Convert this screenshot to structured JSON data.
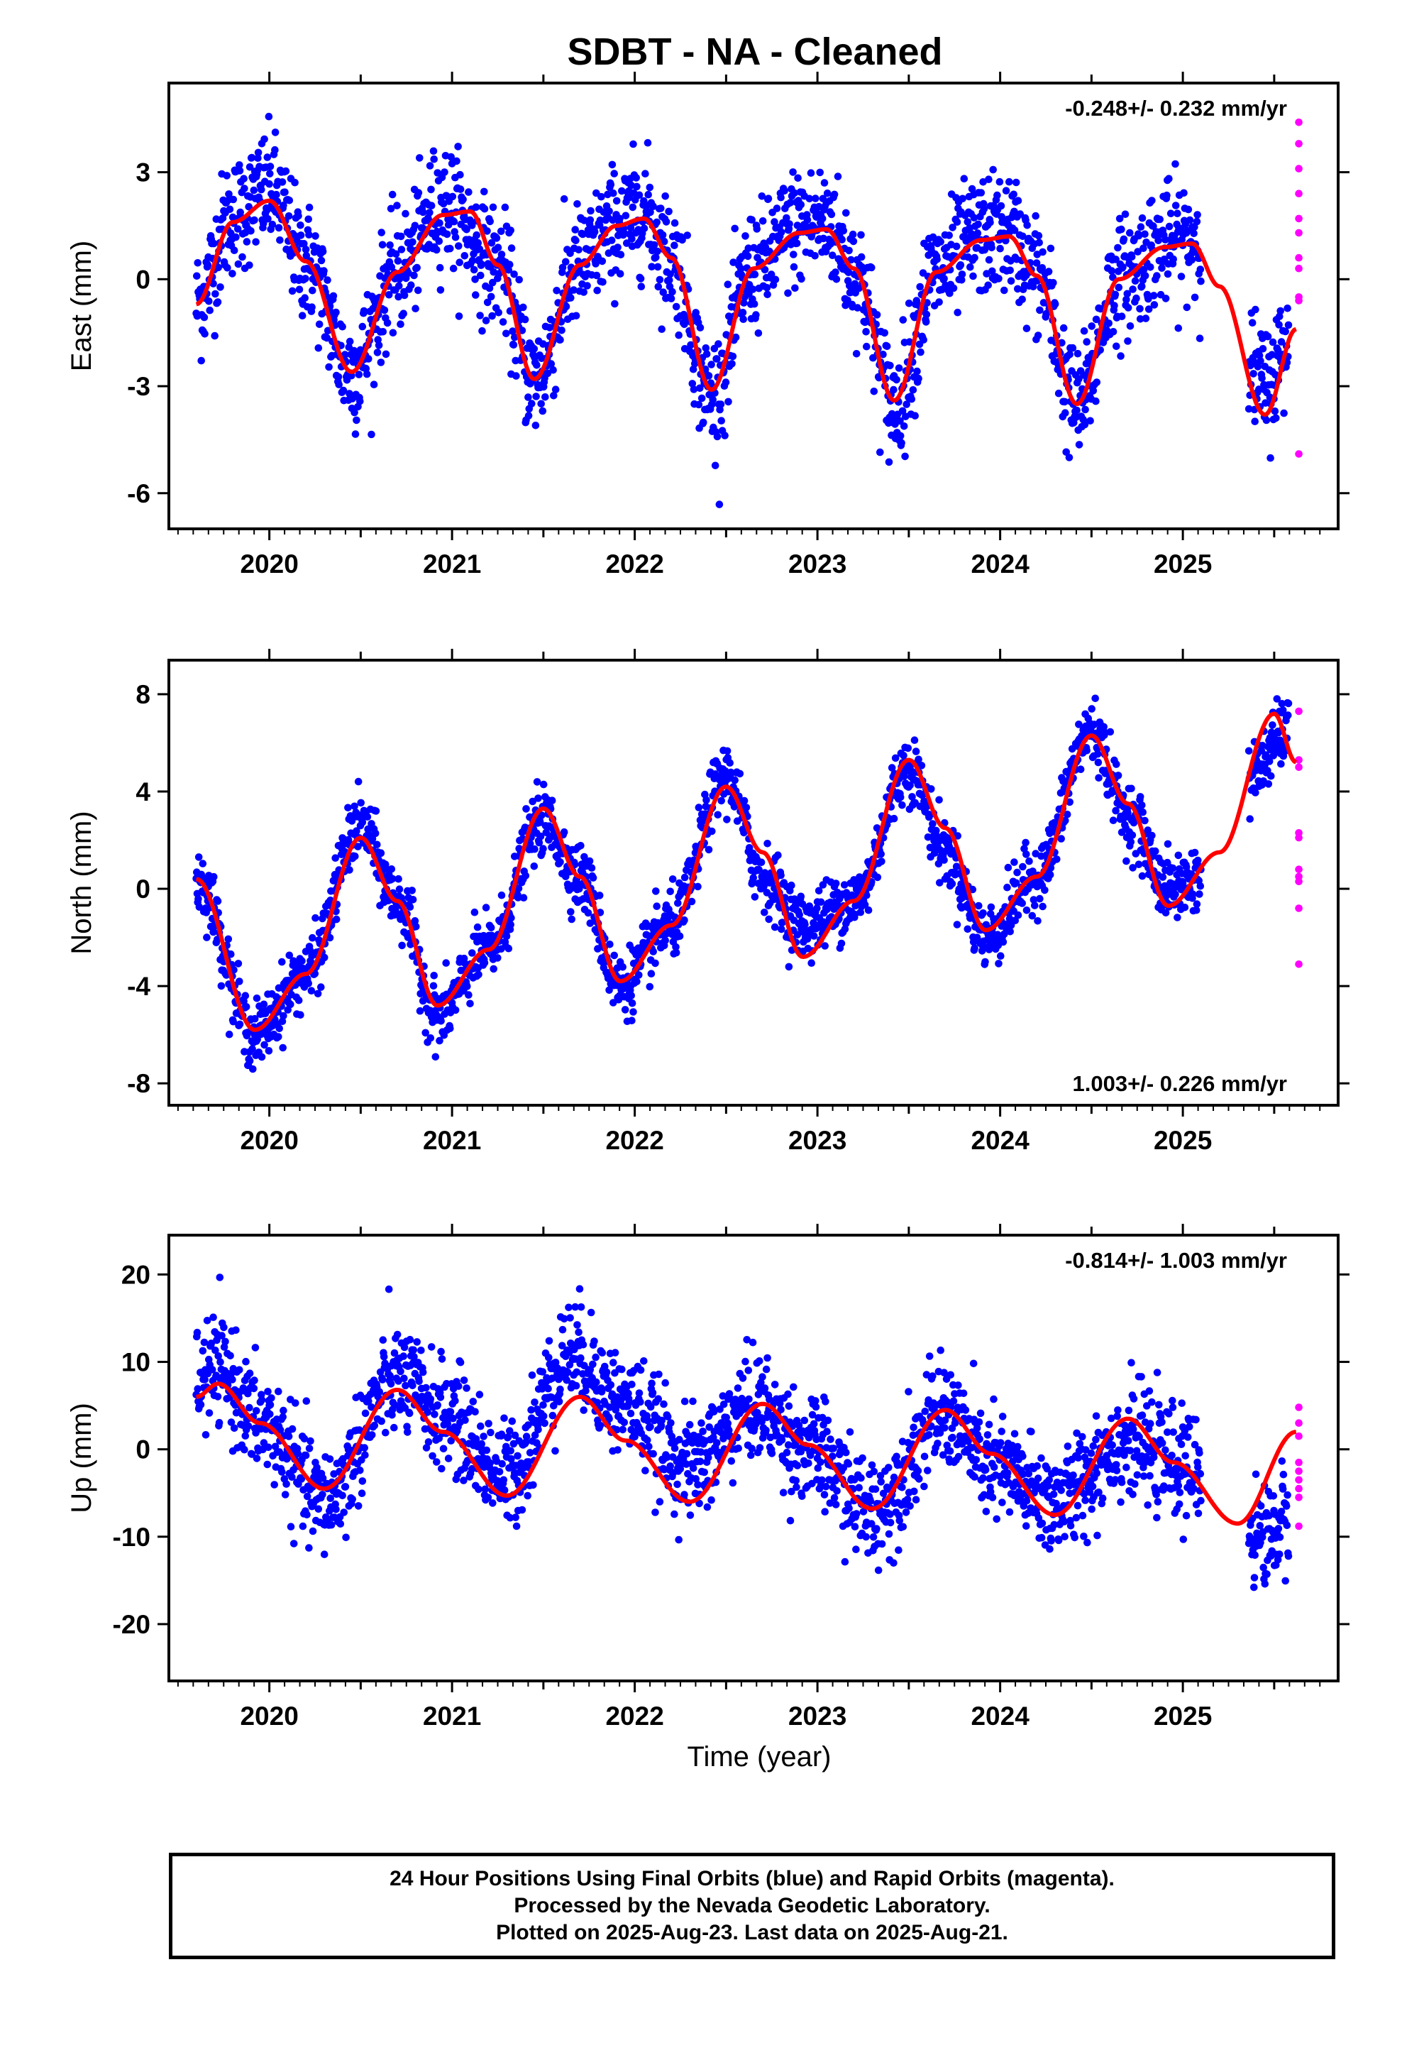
{
  "title": "SDBT  - NA - Cleaned",
  "x_axis_title": "Time (year)",
  "footer": {
    "line1": "24 Hour Positions Using Final Orbits (blue) and Rapid Orbits (magenta).",
    "line2": "Processed by the Nevada Geodetic Laboratory.",
    "line3": "Plotted on 2025-Aug-23. Last data on 2025-Aug-21."
  },
  "colors": {
    "final_orbits": "#0000ff",
    "rapid_orbits": "#ff00ff",
    "model": "#ff0000"
  },
  "chart_data": [
    {
      "type": "scatter",
      "ylabel": "East (mm)",
      "rate_label": "-0.248+/- 0.232 mm/yr",
      "rate_position": "top-right",
      "xlim": [
        2019.45,
        2025.85
      ],
      "ylim": [
        -7,
        5.5
      ],
      "xticks": [
        2020,
        2021,
        2022,
        2023,
        2024,
        2025
      ],
      "yticks": [
        -6,
        -3,
        0,
        3
      ],
      "model": {
        "x": [
          2019.6,
          2019.8,
          2020.0,
          2020.2,
          2020.45,
          2020.7,
          2020.95,
          2021.1,
          2021.25,
          2021.45,
          2021.7,
          2021.9,
          2022.05,
          2022.2,
          2022.42,
          2022.65,
          2022.9,
          2023.05,
          2023.2,
          2023.42,
          2023.65,
          2023.9,
          2024.05,
          2024.2,
          2024.42,
          2024.65,
          2024.9,
          2025.05,
          2025.2,
          2025.45,
          2025.62
        ],
        "y": [
          -0.7,
          1.6,
          2.2,
          0.5,
          -2.6,
          0.2,
          1.8,
          1.9,
          0.4,
          -2.8,
          0.4,
          1.5,
          1.7,
          0.6,
          -3.1,
          0.3,
          1.3,
          1.4,
          0.3,
          -3.4,
          0.2,
          1.1,
          1.2,
          0.1,
          -3.5,
          0.0,
          0.9,
          1.0,
          -0.2,
          -3.8,
          -1.4
        ]
      },
      "final_trace": {
        "x": [
          2019.6,
          2019.8,
          2020.0,
          2020.2,
          2020.45,
          2020.7,
          2020.95,
          2021.25,
          2021.45,
          2021.7,
          2021.9,
          2022.05,
          2022.2,
          2022.42,
          2022.65,
          2022.9,
          2023.05,
          2023.2,
          2023.42,
          2023.65,
          2023.9,
          2024.05,
          2024.2,
          2024.42,
          2024.65,
          2024.9,
          2025.05,
          2025.2,
          2025.45,
          2025.58
        ],
        "y": [
          -0.7,
          1.8,
          2.5,
          0.5,
          -2.6,
          0.2,
          2.1,
          0.4,
          -2.8,
          0.4,
          1.5,
          1.9,
          0.6,
          -3.3,
          0.3,
          1.5,
          1.6,
          0.3,
          -3.5,
          0.2,
          1.2,
          1.3,
          0.1,
          -3.6,
          0.0,
          1.0,
          1.2,
          -0.2,
          -3.0,
          -1.8
        ],
        "scatter": 1.1
      },
      "rapid_points": {
        "x": [
          2025.635,
          2025.635,
          2025.635,
          2025.635,
          2025.635,
          2025.635,
          2025.635,
          2025.635,
          2025.635,
          2025.635,
          2025.635
        ],
        "y": [
          4.4,
          3.8,
          3.1,
          2.4,
          1.7,
          1.3,
          0.6,
          0.3,
          -0.5,
          -0.6,
          -4.9
        ]
      }
    },
    {
      "type": "scatter",
      "ylabel": "North (mm)",
      "rate_label": "1.003+/- 0.226 mm/yr",
      "rate_position": "bottom-right",
      "xlim": [
        2019.45,
        2025.85
      ],
      "ylim": [
        -8.9,
        9.4
      ],
      "xticks": [
        2020,
        2021,
        2022,
        2023,
        2024,
        2025
      ],
      "yticks": [
        -8,
        -4,
        0,
        4,
        8
      ],
      "model": {
        "x": [
          2019.6,
          2019.92,
          2020.2,
          2020.5,
          2020.7,
          2020.92,
          2021.2,
          2021.5,
          2021.7,
          2021.92,
          2022.2,
          2022.5,
          2022.7,
          2022.92,
          2023.2,
          2023.5,
          2023.7,
          2023.92,
          2024.2,
          2024.5,
          2024.7,
          2024.92,
          2025.2,
          2025.5,
          2025.62
        ],
        "y": [
          0.4,
          -5.8,
          -3.5,
          2.1,
          -0.5,
          -4.8,
          -2.5,
          3.3,
          0.5,
          -3.8,
          -1.5,
          4.2,
          1.5,
          -2.8,
          -0.5,
          5.3,
          2.5,
          -1.7,
          0.5,
          6.3,
          3.5,
          -0.7,
          1.5,
          7.2,
          5.2
        ]
      },
      "final_trace": {
        "x": [
          2019.6,
          2019.92,
          2020.2,
          2020.5,
          2020.7,
          2020.92,
          2021.2,
          2021.5,
          2021.7,
          2021.92,
          2022.2,
          2022.5,
          2022.7,
          2022.92,
          2023.2,
          2023.5,
          2023.7,
          2023.92,
          2024.2,
          2024.5,
          2024.7,
          2024.92,
          2025.1,
          2025.35,
          2025.58
        ],
        "y": [
          0.4,
          -6.0,
          -3.5,
          2.6,
          -0.5,
          -5.2,
          -2.5,
          2.8,
          0.5,
          -4.0,
          -1.5,
          4.6,
          0.5,
          -1.5,
          -0.5,
          5.0,
          1.5,
          -2.0,
          0.5,
          6.5,
          3.0,
          0.0,
          0.5,
          4.5,
          6.5
        ],
        "scatter": 0.9
      },
      "rapid_points": {
        "x": [
          2025.635,
          2025.635,
          2025.635,
          2025.635,
          2025.635,
          2025.635,
          2025.635,
          2025.635,
          2025.635,
          2025.635
        ],
        "y": [
          7.3,
          5.3,
          5.0,
          2.3,
          2.1,
          0.8,
          0.5,
          0.3,
          -0.8,
          -3.1
        ]
      }
    },
    {
      "type": "scatter",
      "ylabel": "Up (mm)",
      "rate_label": "-0.814+/- 1.003 mm/yr",
      "rate_position": "top-right",
      "xlim": [
        2019.45,
        2025.85
      ],
      "ylim": [
        -26.5,
        24.5
      ],
      "xticks": [
        2020,
        2021,
        2022,
        2023,
        2024,
        2025
      ],
      "yticks": [
        -20,
        -10,
        0,
        10,
        20
      ],
      "model": {
        "x": [
          2019.6,
          2019.72,
          2019.95,
          2020.3,
          2020.7,
          2020.95,
          2021.3,
          2021.7,
          2021.95,
          2022.3,
          2022.7,
          2022.95,
          2023.3,
          2023.7,
          2023.95,
          2024.3,
          2024.7,
          2024.95,
          2025.3,
          2025.62
        ],
        "y": [
          6.0,
          7.5,
          3.0,
          -4.5,
          6.8,
          2.0,
          -5.3,
          6.0,
          1.0,
          -6.0,
          5.2,
          0.5,
          -6.8,
          4.5,
          -0.5,
          -7.5,
          3.5,
          -1.5,
          -8.5,
          2.0
        ]
      },
      "final_trace": {
        "x": [
          2019.6,
          2019.72,
          2019.95,
          2020.3,
          2020.7,
          2020.95,
          2021.3,
          2021.65,
          2021.95,
          2022.3,
          2022.65,
          2022.95,
          2023.3,
          2023.7,
          2023.95,
          2024.3,
          2024.7,
          2024.95,
          2025.1,
          2025.45,
          2025.58
        ],
        "y": [
          8.0,
          9.0,
          3.0,
          -6.0,
          8.0,
          4.0,
          -3.0,
          11.0,
          5.0,
          -2.0,
          5.0,
          0.0,
          -7.0,
          4.0,
          -2.0,
          -6.0,
          1.0,
          -1.5,
          -3.0,
          -10.0,
          -8.0
        ],
        "scatter": 4.0
      },
      "rapid_points": {
        "x": [
          2025.635,
          2025.635,
          2025.635,
          2025.635,
          2025.635,
          2025.635,
          2025.635,
          2025.635,
          2025.635
        ],
        "y": [
          4.8,
          3.0,
          1.5,
          -1.5,
          -2.5,
          -3.5,
          -4.5,
          -5.5,
          -8.8
        ]
      }
    }
  ]
}
